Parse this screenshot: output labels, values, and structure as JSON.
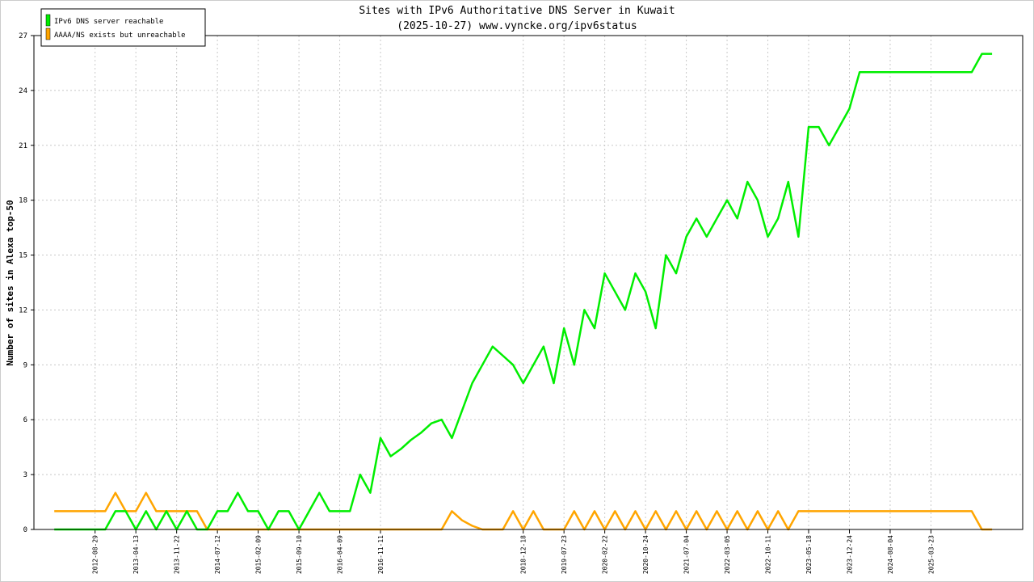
{
  "chart_data": {
    "type": "line",
    "title": "Sites with IPv6 Authoritative DNS Server in Kuwait",
    "subtitle": "(2025-10-27) www.vyncke.org/ipv6status",
    "y_label": "Number of sites in Alexa top-50",
    "categories": [
      null,
      null,
      null,
      null,
      null,
      null,
      "2012-08-29",
      null,
      null,
      null,
      "2013-04-13",
      null,
      null,
      null,
      "2013-11-22",
      null,
      null,
      null,
      "2014-07-12",
      null,
      null,
      null,
      "2015-02-09",
      null,
      null,
      null,
      "2015-09-10",
      null,
      null,
      null,
      "2016-04-09",
      null,
      null,
      null,
      "2016-11-11",
      null,
      null,
      null,
      null,
      null,
      null,
      null,
      null,
      null,
      null,
      null,
      null,
      null,
      "2018-12-18",
      null,
      null,
      null,
      "2019-07-23",
      null,
      null,
      null,
      "2020-02-22",
      null,
      null,
      null,
      "2020-10-24",
      null,
      null,
      null,
      "2021-07-04",
      null,
      null,
      null,
      "2022-03-05",
      null,
      null,
      null,
      "2022-10-11",
      null,
      null,
      null,
      "2023-05-18",
      null,
      null,
      null,
      "2023-12-24",
      null,
      null,
      null,
      "2024-08-04",
      null,
      null,
      null,
      "2025-03-23",
      null,
      null,
      null,
      null,
      null,
      null,
      null,
      null
    ],
    "series": [
      {
        "name": "IPv6 DNS server reachable",
        "color": "#00ee00",
        "values": [
          null,
          null,
          0,
          0,
          0,
          0,
          0,
          0,
          1,
          1,
          0,
          1,
          0,
          1,
          0,
          1,
          0,
          0,
          1,
          1,
          2,
          1,
          1,
          0,
          1,
          1,
          0,
          1,
          2,
          1,
          1,
          1,
          3,
          2,
          5,
          4,
          4.4,
          4.9,
          5.3,
          5.8,
          6,
          5,
          6.5,
          8,
          9,
          10,
          9.5,
          9,
          8,
          9,
          10,
          8,
          11,
          9,
          12,
          11,
          14,
          13,
          12,
          14,
          13,
          11,
          15,
          14,
          16,
          17,
          16,
          17,
          18,
          17,
          19,
          18,
          16,
          17,
          19,
          16,
          22,
          22,
          21,
          22,
          23,
          25,
          25,
          25,
          25,
          25,
          25,
          25,
          25,
          25,
          25,
          25,
          25,
          26,
          26,
          null,
          null
        ]
      },
      {
        "name": "AAAA/NS exists but unreachable",
        "color": "#ffa500",
        "values": [
          null,
          null,
          1,
          1,
          1,
          1,
          1,
          1,
          2,
          1,
          1,
          2,
          1,
          1,
          1,
          1,
          1,
          0,
          0,
          0,
          0,
          0,
          0,
          0,
          0,
          0,
          0,
          0,
          0,
          0,
          0,
          0,
          0,
          0,
          0,
          0,
          0,
          0,
          0,
          0,
          0,
          1,
          0.5,
          0.2,
          0,
          0,
          0,
          1,
          0,
          1,
          0,
          0,
          0,
          1,
          0,
          1,
          0,
          1,
          0,
          1,
          0,
          1,
          0,
          1,
          0,
          1,
          0,
          1,
          0,
          1,
          0,
          1,
          0,
          1,
          0,
          1,
          1,
          1,
          1,
          1,
          1,
          1,
          1,
          1,
          1,
          1,
          1,
          1,
          1,
          1,
          1,
          1,
          1,
          0,
          0,
          null,
          null
        ]
      }
    ],
    "ylim": [
      0,
      27
    ],
    "yticks": [
      0,
      3,
      6,
      9,
      12,
      15,
      18,
      21,
      24,
      27
    ],
    "grid": true,
    "legend": "top-left"
  }
}
